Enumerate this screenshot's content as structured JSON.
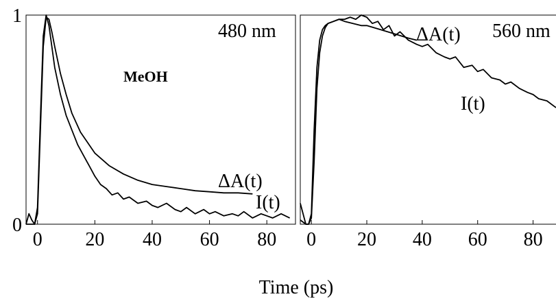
{
  "chart_data": {
    "type": "line",
    "xlabel": "Time (ps)",
    "panels": [
      {
        "name": "left",
        "panel_label": "480 nm",
        "solvent": "MeOH",
        "xlim": [
          -4,
          90
        ],
        "ylim": [
          0,
          1
        ],
        "x_ticks": [
          0,
          20,
          40,
          60,
          80
        ],
        "y_ticks": [
          0,
          1
        ],
        "series": [
          {
            "name": "ΔA(t)",
            "x": [
              -4,
              -1,
              0,
              1,
              2,
              3,
              4,
              5,
              6,
              8,
              10,
              12,
              15,
              18,
              20,
              25,
              30,
              35,
              40,
              45,
              50,
              55,
              60,
              65,
              70,
              75
            ],
            "y": [
              0.0,
              0.0,
              0.05,
              0.45,
              0.85,
              0.99,
              0.98,
              0.92,
              0.85,
              0.72,
              0.62,
              0.53,
              0.44,
              0.38,
              0.34,
              0.28,
              0.24,
              0.21,
              0.19,
              0.18,
              0.17,
              0.16,
              0.155,
              0.15,
              0.15,
              0.145
            ]
          },
          {
            "name": "I(t)",
            "x": [
              -4,
              -3,
              -2,
              -1,
              0,
              1,
              2,
              3,
              4,
              5,
              6,
              8,
              10,
              12,
              14,
              16,
              18,
              20,
              22,
              24,
              26,
              28,
              30,
              32,
              35,
              38,
              40,
              42,
              45,
              48,
              50,
              52,
              55,
              58,
              60,
              62,
              65,
              68,
              70,
              72,
              75,
              78,
              80,
              82,
              85,
              88
            ],
            "y": [
              0.0,
              0.05,
              0.02,
              0.0,
              0.08,
              0.5,
              0.9,
              1.0,
              0.95,
              0.85,
              0.75,
              0.62,
              0.52,
              0.45,
              0.38,
              0.33,
              0.28,
              0.23,
              0.19,
              0.17,
              0.14,
              0.15,
              0.12,
              0.13,
              0.1,
              0.11,
              0.09,
              0.08,
              0.1,
              0.07,
              0.06,
              0.08,
              0.05,
              0.07,
              0.05,
              0.06,
              0.04,
              0.05,
              0.04,
              0.06,
              0.03,
              0.05,
              0.04,
              0.03,
              0.05,
              0.03
            ]
          }
        ]
      },
      {
        "name": "right",
        "panel_label": "560 nm",
        "xlim": [
          -4,
          90
        ],
        "ylim": [
          0,
          1
        ],
        "x_ticks": [
          0,
          20,
          40,
          60,
          80
        ],
        "series": [
          {
            "name": "ΔA(t)",
            "x": [
              -4,
              -2,
              -1,
              0,
              1,
              2,
              3,
              4,
              5,
              6,
              8,
              10,
              12,
              15,
              18,
              20,
              25,
              30,
              35,
              38
            ],
            "y": [
              0.1,
              0.0,
              0.0,
              0.05,
              0.45,
              0.75,
              0.88,
              0.93,
              0.95,
              0.96,
              0.97,
              0.98,
              0.97,
              0.96,
              0.95,
              0.95,
              0.93,
              0.91,
              0.89,
              0.88
            ]
          },
          {
            "name": "I(t)",
            "x": [
              -4,
              -2,
              -1,
              0,
              1,
              2,
              3,
              4,
              5,
              6,
              8,
              10,
              12,
              14,
              16,
              18,
              20,
              22,
              24,
              26,
              28,
              30,
              32,
              35,
              38,
              40,
              42,
              45,
              48,
              50,
              52,
              55,
              58,
              60,
              62,
              65,
              68,
              70,
              72,
              75,
              78,
              80,
              82,
              85,
              88,
              90
            ],
            "y": [
              0.02,
              0.0,
              0.0,
              0.03,
              0.3,
              0.65,
              0.82,
              0.9,
              0.94,
              0.96,
              0.97,
              0.98,
              0.98,
              0.99,
              0.98,
              1.0,
              0.99,
              0.96,
              0.97,
              0.93,
              0.95,
              0.9,
              0.92,
              0.88,
              0.86,
              0.85,
              0.86,
              0.82,
              0.8,
              0.79,
              0.8,
              0.75,
              0.76,
              0.73,
              0.74,
              0.7,
              0.69,
              0.67,
              0.68,
              0.65,
              0.63,
              0.62,
              0.6,
              0.59,
              0.56,
              0.55
            ]
          }
        ]
      }
    ]
  }
}
